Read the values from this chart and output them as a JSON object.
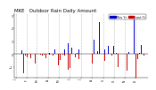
{
  "title": "MKE   Outdoor Rain Daily Amount",
  "title_fontsize": 4.0,
  "background_color": "#ffffff",
  "bar_color_current": "#0000cc",
  "bar_color_previous": "#cc0000",
  "legend_label_current": "This Yr",
  "legend_label_previous": "Last Yr",
  "ylim_min": -1.8,
  "ylim_max": 3.2,
  "num_points": 365,
  "month_labels": [
    "J",
    "F",
    "M",
    "A",
    "M",
    "J",
    "J",
    "A",
    "S",
    "O",
    "N",
    "D"
  ],
  "month_positions": [
    0,
    31,
    59,
    90,
    120,
    151,
    181,
    212,
    243,
    273,
    304,
    334
  ],
  "grid_color": "#aaaaaa",
  "current_rain_seed": 7,
  "previous_rain_seed": 13
}
